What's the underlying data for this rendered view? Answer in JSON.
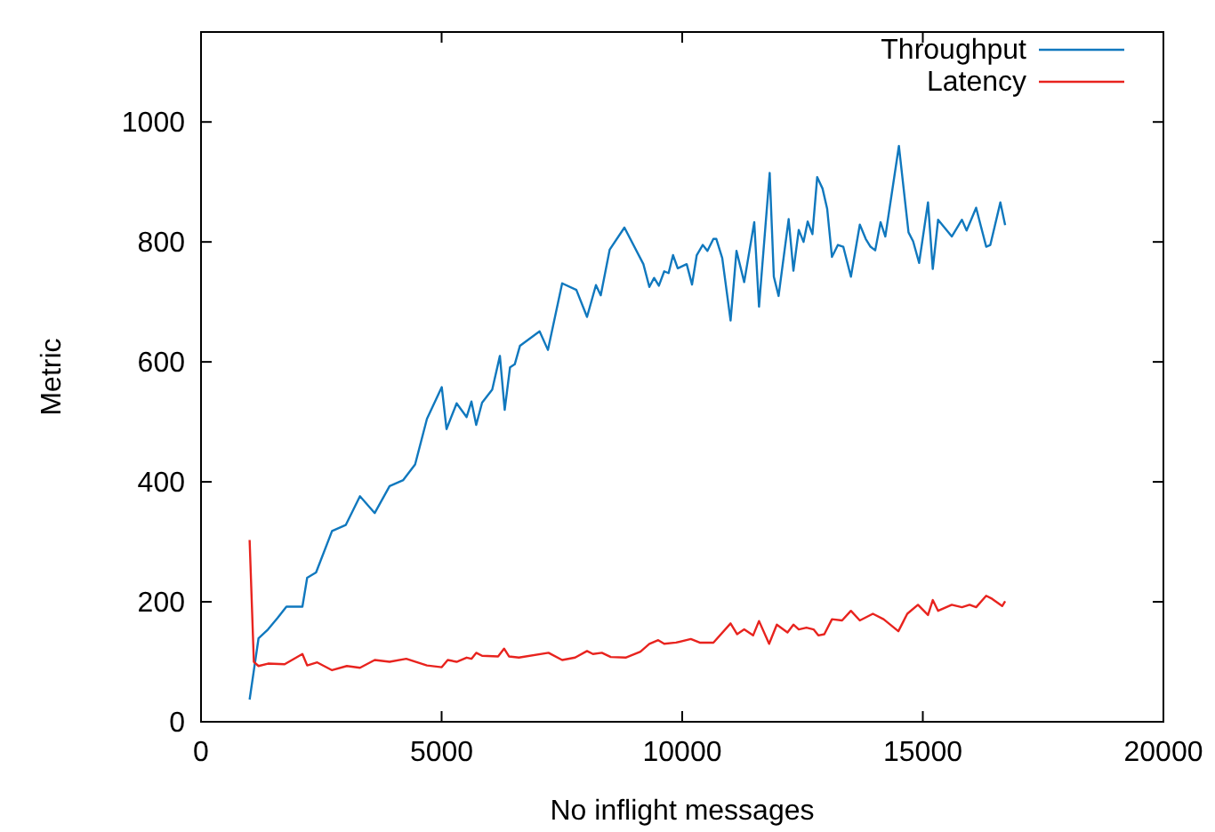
{
  "chart_data": {
    "type": "line",
    "xlabel": "No inflight messages",
    "ylabel": "Metric",
    "xlim": [
      0,
      20000
    ],
    "xticks": [
      0,
      5000,
      10000,
      15000,
      20000
    ],
    "ylim": [
      0,
      1150
    ],
    "yticks": [
      0,
      200,
      400,
      600,
      800,
      1000
    ],
    "grid": false,
    "legend": "top right",
    "marker": "none",
    "line_style": "solid",
    "series": [
      {
        "name": "Throughput",
        "color": "#1078be",
        "x": [
          1010,
          1195,
          1393,
          1590,
          1775,
          2107,
          2206,
          2391,
          2723,
          3007,
          3303,
          3610,
          3919,
          4203,
          4449,
          4695,
          5003,
          5102,
          5312,
          5520,
          5620,
          5719,
          5841,
          6052,
          6211,
          6311,
          6422,
          6520,
          6629,
          7036,
          7209,
          7505,
          7800,
          8022,
          8207,
          8307,
          8492,
          8799,
          9193,
          9317,
          9416,
          9515,
          9626,
          9717,
          9809,
          9907,
          10093,
          10204,
          10302,
          10426,
          10524,
          10648,
          10709,
          10832,
          11005,
          11128,
          11288,
          11497,
          11596,
          11818,
          11904,
          12003,
          12212,
          12311,
          12422,
          12521,
          12607,
          12706,
          12805,
          12916,
          13013,
          13112,
          13236,
          13347,
          13506,
          13691,
          13814,
          13913,
          14011,
          14122,
          14221,
          14503,
          14703,
          14799,
          14923,
          15108,
          15207,
          15318,
          15602,
          15813,
          15910,
          16108,
          16317,
          16403,
          16612,
          16711
        ],
        "values": [
          37,
          139,
          154,
          173,
          192,
          192,
          240,
          249,
          318,
          328,
          376,
          348,
          393,
          403,
          429,
          505,
          558,
          488,
          531,
          508,
          534,
          495,
          532,
          554,
          610,
          520,
          591,
          596,
          627,
          651,
          620,
          731,
          720,
          675,
          728,
          711,
          787,
          824,
          763,
          725,
          740,
          727,
          751,
          748,
          778,
          756,
          763,
          729,
          778,
          795,
          785,
          805,
          805,
          773,
          669,
          785,
          733,
          833,
          692,
          915,
          742,
          710,
          838,
          752,
          820,
          800,
          834,
          813,
          908,
          889,
          855,
          775,
          795,
          792,
          742,
          829,
          805,
          792,
          786,
          833,
          809,
          960,
          816,
          801,
          765,
          866,
          755,
          837,
          809,
          837,
          819,
          857,
          792,
          795,
          866,
          828
        ]
      },
      {
        "name": "Latency",
        "color": "#e8231e",
        "x": [
          1010,
          1098,
          1195,
          1393,
          1738,
          2107,
          2206,
          2415,
          2723,
          3031,
          3303,
          3610,
          3919,
          4265,
          4695,
          5003,
          5127,
          5312,
          5520,
          5620,
          5719,
          5841,
          6174,
          6298,
          6400,
          6606,
          7221,
          7505,
          7775,
          8022,
          8145,
          8330,
          8515,
          8824,
          9132,
          9317,
          9502,
          9626,
          9871,
          10179,
          10364,
          10648,
          11005,
          11140,
          11288,
          11473,
          11596,
          11806,
          11966,
          12188,
          12311,
          12422,
          12582,
          12730,
          12829,
          12953,
          13112,
          13322,
          13506,
          13691,
          13963,
          14185,
          14492,
          14677,
          14899,
          15108,
          15207,
          15318,
          15602,
          15813,
          15972,
          16108,
          16317,
          16440,
          16649,
          16711
        ],
        "values": [
          303,
          100,
          93,
          97,
          96,
          113,
          94,
          99,
          86,
          93,
          90,
          103,
          100,
          105,
          94,
          91,
          103,
          100,
          107,
          105,
          115,
          110,
          109,
          122,
          109,
          107,
          115,
          103,
          107,
          118,
          113,
          115,
          108,
          107,
          117,
          130,
          136,
          130,
          132,
          138,
          132,
          132,
          164,
          146,
          154,
          144,
          168,
          130,
          162,
          149,
          162,
          154,
          157,
          154,
          144,
          146,
          171,
          169,
          185,
          169,
          180,
          171,
          151,
          180,
          195,
          178,
          203,
          185,
          195,
          191,
          195,
          191,
          210,
          205,
          193,
          201
        ]
      }
    ]
  }
}
